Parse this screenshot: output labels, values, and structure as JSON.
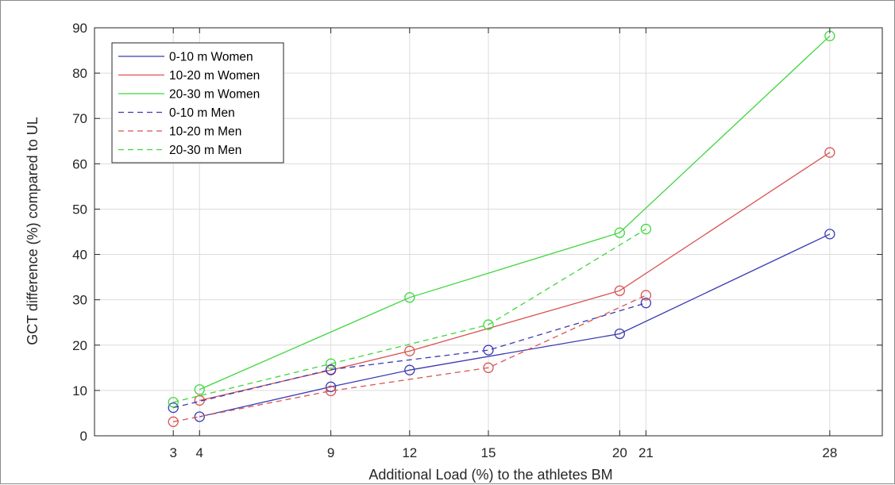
{
  "chart_data": {
    "type": "line",
    "title": "",
    "xlabel": "Additional Load (%) to the athletes BM",
    "ylabel": "GCT difference (%) compared to UL",
    "xlim": [
      0,
      30
    ],
    "ylim": [
      0,
      90
    ],
    "x_ticks": [
      3,
      4,
      9,
      12,
      15,
      20,
      21,
      28
    ],
    "y_ticks": [
      0,
      10,
      20,
      30,
      40,
      50,
      60,
      70,
      80,
      90
    ],
    "grid": true,
    "legend_position": "top-left",
    "marker": "circle",
    "series": [
      {
        "name": "0-10 m Women",
        "color": "#3a3ab4",
        "style": "solid",
        "x": [
          4,
          9,
          12,
          20,
          28
        ],
        "y": [
          4.2,
          10.8,
          14.5,
          22.5,
          44.5
        ]
      },
      {
        "name": "10-20 m Women",
        "color": "#d8534f",
        "style": "solid",
        "x": [
          4,
          9,
          12,
          20,
          28
        ],
        "y": [
          7.8,
          14.5,
          18.7,
          32.0,
          62.5
        ]
      },
      {
        "name": "20-30 m Women",
        "color": "#3fd63f",
        "style": "solid",
        "x": [
          4,
          12,
          20,
          28
        ],
        "y": [
          10.2,
          30.5,
          44.8,
          88.2
        ]
      },
      {
        "name": "0-10 m Men",
        "color": "#3a3ab4",
        "style": "dashed",
        "x": [
          3,
          9,
          15,
          21
        ],
        "y": [
          6.2,
          14.6,
          18.9,
          29.3
        ]
      },
      {
        "name": "10-20 m Men",
        "color": "#d8534f",
        "style": "dashed",
        "x": [
          3,
          9,
          15,
          21
        ],
        "y": [
          3.1,
          9.9,
          15.0,
          31.0
        ]
      },
      {
        "name": "20-30 m Men",
        "color": "#3fd63f",
        "style": "dashed",
        "x": [
          3,
          9,
          15,
          21
        ],
        "y": [
          7.4,
          15.9,
          24.5,
          45.6
        ]
      }
    ]
  }
}
